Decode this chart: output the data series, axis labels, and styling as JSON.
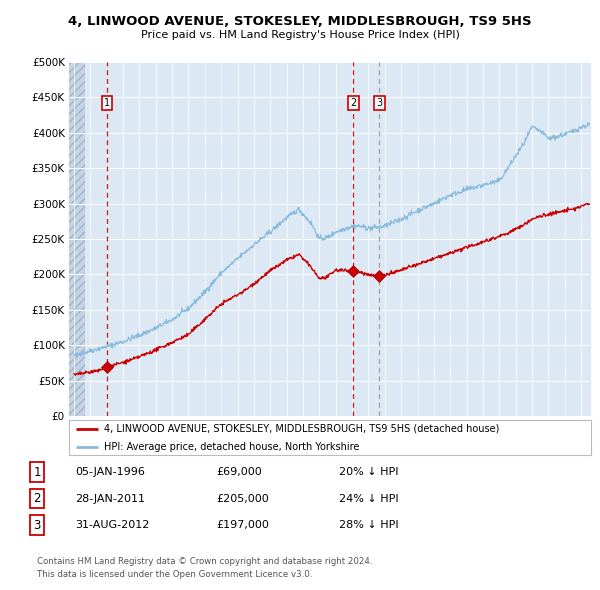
{
  "title": "4, LINWOOD AVENUE, STOKESLEY, MIDDLESBROUGH, TS9 5HS",
  "subtitle": "Price paid vs. HM Land Registry's House Price Index (HPI)",
  "legend_line1": "4, LINWOOD AVENUE, STOKESLEY, MIDDLESBROUGH, TS9 5HS (detached house)",
  "legend_line2": "HPI: Average price, detached house, North Yorkshire",
  "footer1": "Contains HM Land Registry data © Crown copyright and database right 2024.",
  "footer2": "This data is licensed under the Open Government Licence v3.0.",
  "sale_color": "#cc0000",
  "hpi_color": "#88bbdd",
  "bg_color": "#dce9f5",
  "grid_color": "#ffffff",
  "sales": [
    {
      "label": "1",
      "date": 1996.03,
      "price": 69000,
      "vline_color": "#cc0000",
      "vline_style": "dashed"
    },
    {
      "label": "2",
      "date": 2011.075,
      "price": 205000,
      "vline_color": "#cc0000",
      "vline_style": "dashed"
    },
    {
      "label": "3",
      "date": 2012.67,
      "price": 197000,
      "vline_color": "#999999",
      "vline_style": "dashed"
    }
  ],
  "table_rows": [
    {
      "num": "1",
      "date": "05-JAN-1996",
      "price": "£69,000",
      "hpi": "20% ↓ HPI"
    },
    {
      "num": "2",
      "date": "28-JAN-2011",
      "price": "£205,000",
      "hpi": "24% ↓ HPI"
    },
    {
      "num": "3",
      "date": "31-AUG-2012",
      "price": "£197,000",
      "hpi": "28% ↓ HPI"
    }
  ],
  "ylim": [
    0,
    500000
  ],
  "yticks": [
    0,
    50000,
    100000,
    150000,
    200000,
    250000,
    300000,
    350000,
    400000,
    450000,
    500000
  ],
  "xlim_start": 1993.7,
  "xlim_end": 2025.6,
  "hpi_key_years": [
    1994.0,
    1995.0,
    1996.0,
    1997.0,
    1998.0,
    1999.0,
    2000.0,
    2001.0,
    2002.0,
    2003.0,
    2004.0,
    2005.0,
    2006.0,
    2007.0,
    2007.75,
    2008.5,
    2009.0,
    2009.5,
    2010.0,
    2011.0,
    2011.5,
    2012.0,
    2013.0,
    2014.0,
    2015.0,
    2016.0,
    2017.0,
    2018.0,
    2019.0,
    2020.0,
    2020.75,
    2021.5,
    2022.0,
    2022.5,
    2023.0,
    2023.5,
    2024.0,
    2024.5,
    2025.0,
    2025.5
  ],
  "hpi_key_prices": [
    85000,
    92000,
    98000,
    105000,
    114000,
    124000,
    136000,
    152000,
    175000,
    202000,
    222000,
    242000,
    260000,
    280000,
    292000,
    272000,
    250000,
    252000,
    260000,
    268000,
    268000,
    265000,
    268000,
    278000,
    290000,
    300000,
    312000,
    320000,
    326000,
    332000,
    358000,
    385000,
    408000,
    402000,
    392000,
    394000,
    398000,
    402000,
    408000,
    412000
  ],
  "red_key_years": [
    1994.0,
    1995.5,
    1996.03,
    1997.5,
    1999.0,
    2001.0,
    2003.0,
    2004.5,
    2006.0,
    2007.0,
    2007.75,
    2008.5,
    2009.0,
    2009.5,
    2010.0,
    2011.075,
    2012.0,
    2012.67,
    2013.5,
    2014.5,
    2015.5,
    2016.5,
    2017.5,
    2018.5,
    2019.5,
    2020.5,
    2021.5,
    2022.0,
    2022.5,
    2023.0,
    2023.5,
    2024.0,
    2024.5,
    2025.0,
    2025.5
  ],
  "red_key_prices": [
    58000,
    64000,
    69000,
    79000,
    93000,
    115000,
    158000,
    178000,
    205000,
    220000,
    228000,
    210000,
    194000,
    196000,
    206000,
    205000,
    200000,
    197000,
    202000,
    210000,
    218000,
    226000,
    234000,
    242000,
    250000,
    258000,
    270000,
    278000,
    282000,
    285000,
    287000,
    290000,
    292000,
    296000,
    300000
  ]
}
